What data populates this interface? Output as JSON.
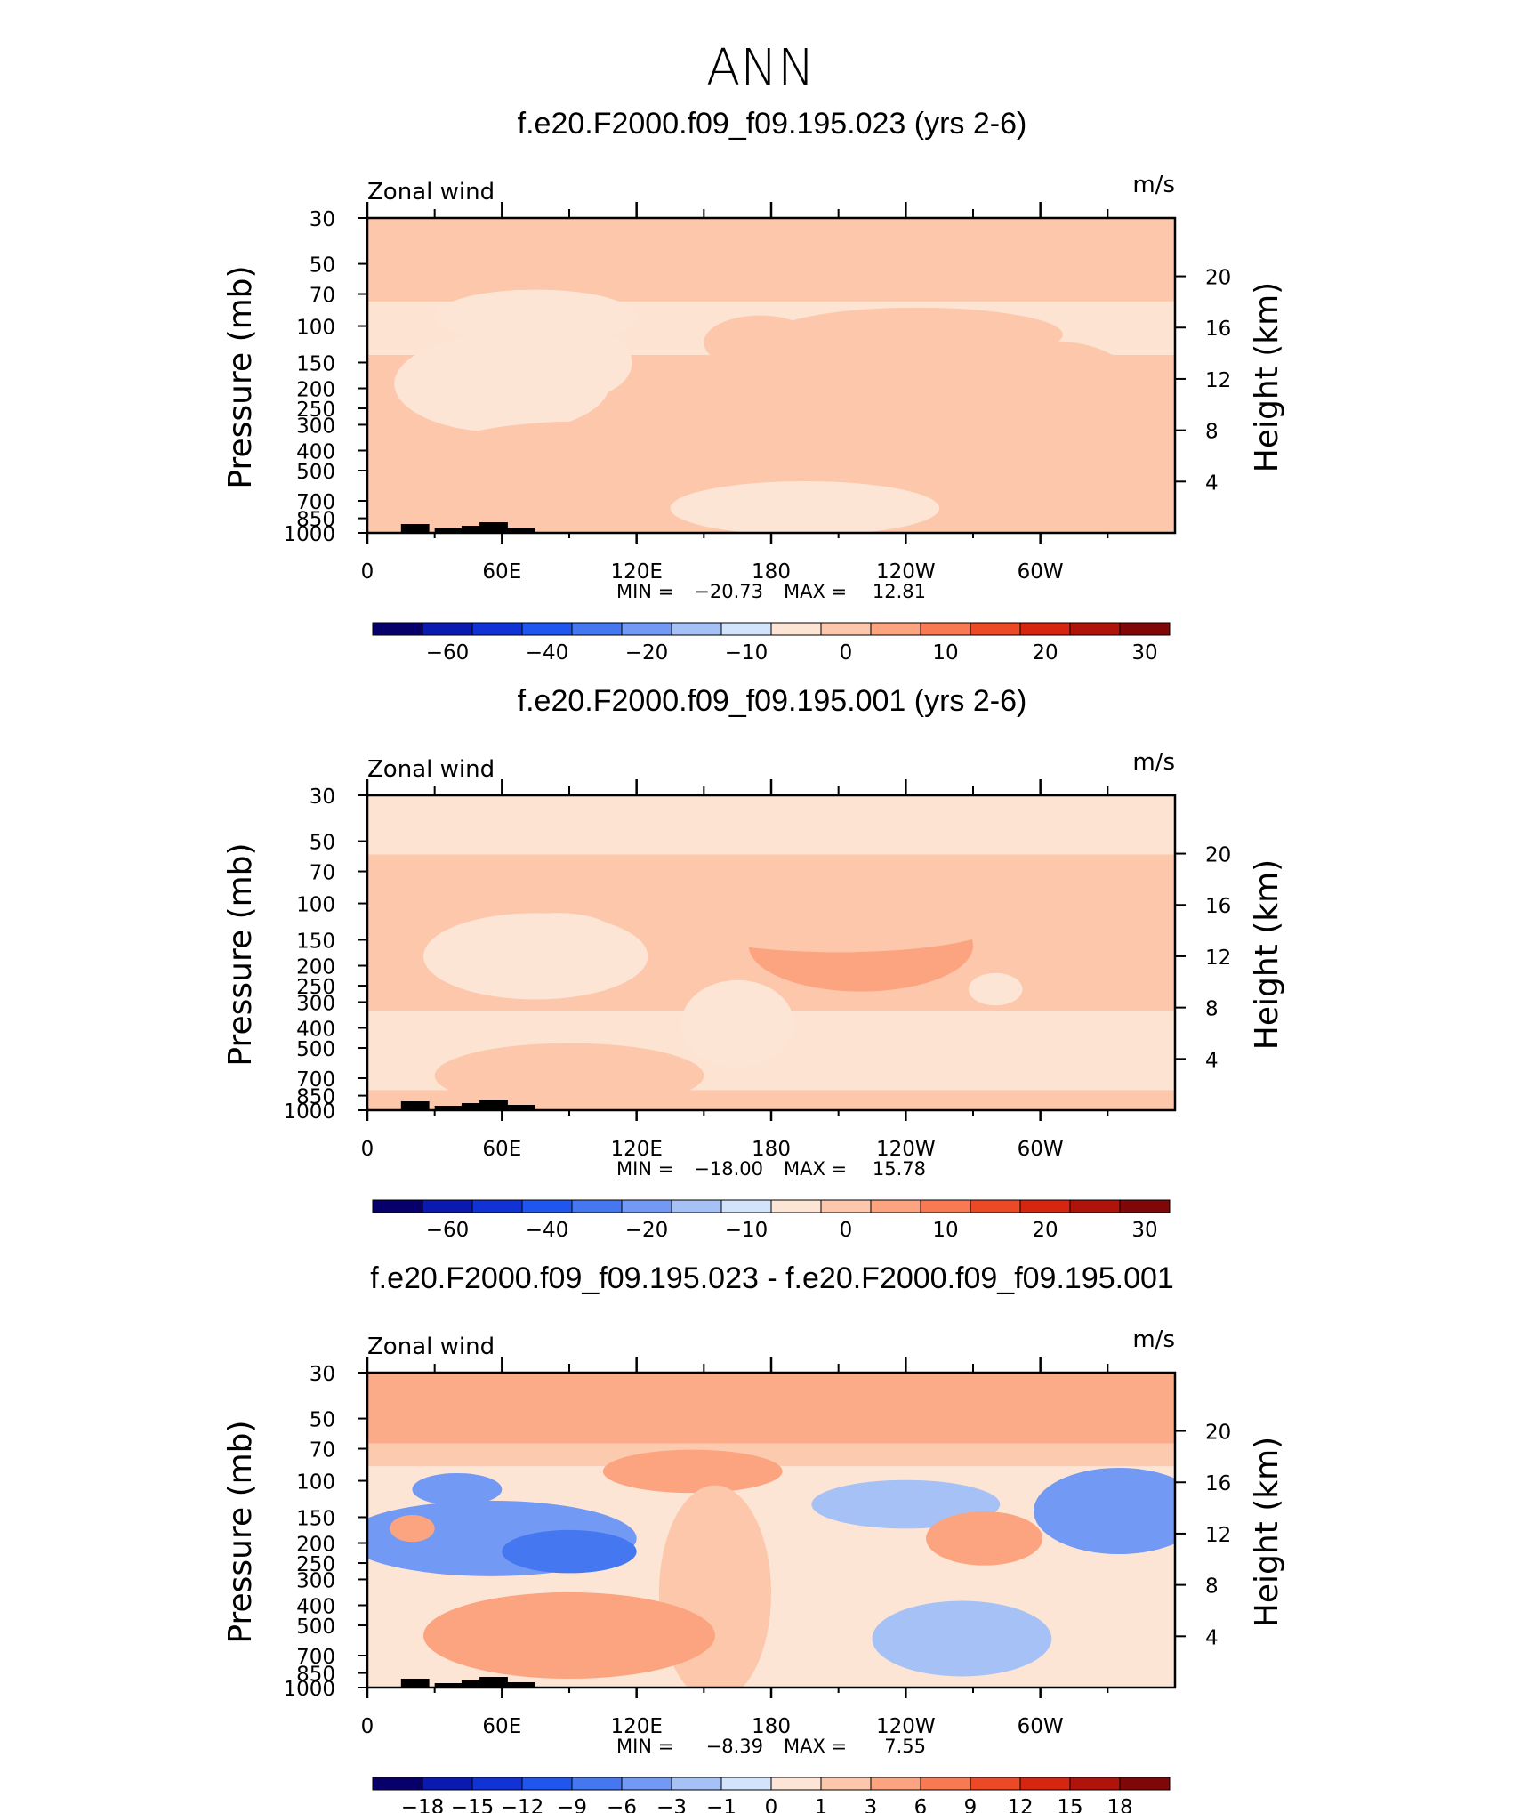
{
  "figure_title": "ANN",
  "chart_data": [
    {
      "type": "heatmap",
      "title": "f.e20.F2000.f09_f09.195.023 (yrs 2-6)",
      "subtitle_left": "Zonal wind",
      "subtitle_right": "m/s",
      "ylabel": "Pressure (mb)",
      "ylabel_right": "Height (km)",
      "x_ticks": [
        "0",
        "60E",
        "120E",
        "180",
        "120W",
        "60W"
      ],
      "x_range": [
        0,
        360
      ],
      "y_ticks": [
        "30",
        "50",
        "70",
        "100",
        "150",
        "200",
        "250",
        "300",
        "400",
        "500",
        "700",
        "850",
        "1000"
      ],
      "y_range": [
        30,
        1000
      ],
      "height_ticks": [
        "20",
        "16",
        "12",
        "8",
        "4"
      ],
      "min_label": "MIN =",
      "min_value": "−20.73",
      "max_label": "MAX =",
      "max_value": "12.81",
      "min": -20.73,
      "max": 12.81,
      "colorbar_labels": [
        "−60",
        "−40",
        "−20",
        "−10",
        "0",
        "10",
        "20",
        "30"
      ],
      "colorbar_colors": [
        "#08006a",
        "#0a1ab0",
        "#1133d6",
        "#1f57ee",
        "#4477f0",
        "#7299f4",
        "#a6c1f6",
        "#d2e4fc",
        "#fde5d5",
        "#fcc7ab",
        "#fba47f",
        "#f77a52",
        "#ec4a26",
        "#d6260f",
        "#b01309",
        "#7f0707"
      ],
      "features": [
        {
          "type": "band",
          "p_top": 76,
          "p_bot": 138,
          "value": -4
        },
        {
          "type": "band",
          "p_top": 138,
          "p_bot": 600,
          "value": 2
        },
        {
          "type": "band",
          "p_top": 520,
          "p_bot": 1000,
          "value": 0
        },
        {
          "type": "blob",
          "lon": 60,
          "p": 190,
          "w": 48,
          "h": 0.9,
          "value": -8
        },
        {
          "type": "blob",
          "lon": 90,
          "p": 150,
          "w": 28,
          "h": 0.7,
          "value": -6
        },
        {
          "type": "blob",
          "lon": 75,
          "p": 90,
          "w": 45,
          "h": 0.5,
          "value": -4
        },
        {
          "type": "blob",
          "lon": 210,
          "p": 160,
          "w": 55,
          "h": 0.85,
          "value": 7
        },
        {
          "type": "blob",
          "lon": 305,
          "p": 180,
          "w": 35,
          "h": 0.7,
          "value": 5
        },
        {
          "type": "blob",
          "lon": 245,
          "p": 110,
          "w": 65,
          "h": 0.5,
          "value": 5
        },
        {
          "type": "blob",
          "lon": 175,
          "p": 120,
          "w": 25,
          "h": 0.5,
          "value": 4
        },
        {
          "type": "blob",
          "lon": 95,
          "p": 560,
          "w": 85,
          "h": 1.1,
          "value": 5
        },
        {
          "type": "blob",
          "lon": 195,
          "p": 760,
          "w": 60,
          "h": 0.5,
          "value": -5
        },
        {
          "type": "blob",
          "lon": 325,
          "p": 520,
          "w": 35,
          "h": 1.0,
          "value": 2
        }
      ]
    },
    {
      "type": "heatmap",
      "title": "f.e20.F2000.f09_f09.195.001 (yrs 2-6)",
      "subtitle_left": "Zonal wind",
      "subtitle_right": "m/s",
      "ylabel": "Pressure (mb)",
      "ylabel_right": "Height (km)",
      "x_ticks": [
        "0",
        "60E",
        "120E",
        "180",
        "120W",
        "60W"
      ],
      "x_range": [
        0,
        360
      ],
      "y_ticks": [
        "30",
        "50",
        "70",
        "100",
        "150",
        "200",
        "250",
        "300",
        "400",
        "500",
        "700",
        "850",
        "1000"
      ],
      "y_range": [
        30,
        1000
      ],
      "height_ticks": [
        "20",
        "16",
        "12",
        "8",
        "4"
      ],
      "min_label": "MIN =",
      "min_value": "−18.00",
      "max_label": "MAX =",
      "max_value": "15.78",
      "min": -18.0,
      "max": 15.78,
      "colorbar_labels": [
        "−60",
        "−40",
        "−20",
        "−10",
        "0",
        "10",
        "20",
        "30"
      ],
      "colorbar_colors": [
        "#08006a",
        "#0a1ab0",
        "#1133d6",
        "#1f57ee",
        "#4477f0",
        "#7299f4",
        "#a6c1f6",
        "#d2e4fc",
        "#fde5d5",
        "#fcc7ab",
        "#fba47f",
        "#f77a52",
        "#ec4a26",
        "#d6260f",
        "#b01309",
        "#7f0707"
      ],
      "features": [
        {
          "type": "band",
          "p_top": 30,
          "p_bot": 58,
          "value": -4
        },
        {
          "type": "band",
          "p_top": 58,
          "p_bot": 110,
          "value": 2
        },
        {
          "type": "band",
          "p_top": 330,
          "p_bot": 800,
          "value": -4
        },
        {
          "type": "blob",
          "lon": 75,
          "p": 180,
          "w": 50,
          "h": 0.8,
          "value": -8
        },
        {
          "type": "blob",
          "lon": 85,
          "p": 150,
          "w": 28,
          "h": 0.5,
          "value": -5
        },
        {
          "type": "blob",
          "lon": 165,
          "p": 380,
          "w": 25,
          "h": 0.8,
          "value": -4
        },
        {
          "type": "blob",
          "lon": 220,
          "p": 160,
          "w": 50,
          "h": 0.85,
          "value": 10
        },
        {
          "type": "blob",
          "lon": 312,
          "p": 165,
          "w": 30,
          "h": 0.7,
          "value": 8
        },
        {
          "type": "blob",
          "lon": 210,
          "p": 120,
          "w": 75,
          "h": 0.6,
          "value": 5
        },
        {
          "type": "blob",
          "lon": 90,
          "p": 680,
          "w": 60,
          "h": 0.6,
          "value": 4
        },
        {
          "type": "blob",
          "lon": 280,
          "p": 260,
          "w": 12,
          "h": 0.3,
          "value": -5
        }
      ]
    },
    {
      "type": "heatmap",
      "title": "f.e20.F2000.f09_f09.195.023 - f.e20.F2000.f09_f09.195.001",
      "subtitle_left": "Zonal wind",
      "subtitle_right": "m/s",
      "ylabel": "Pressure (mb)",
      "ylabel_right": "Height (km)",
      "x_ticks": [
        "0",
        "60E",
        "120E",
        "180",
        "120W",
        "60W"
      ],
      "x_range": [
        0,
        360
      ],
      "y_ticks": [
        "30",
        "50",
        "70",
        "100",
        "150",
        "200",
        "250",
        "300",
        "400",
        "500",
        "700",
        "850",
        "1000"
      ],
      "y_range": [
        30,
        1000
      ],
      "height_ticks": [
        "20",
        "16",
        "12",
        "8",
        "4"
      ],
      "min_label": "MIN =",
      "min_value": "−8.39",
      "max_label": "MAX =",
      "max_value": "7.55",
      "min": -8.39,
      "max": 7.55,
      "colorbar_labels": [
        "−18",
        "−15",
        "−12",
        "−9",
        "−6",
        "−3",
        "−1",
        "0",
        "1",
        "3",
        "6",
        "9",
        "12",
        "15",
        "18"
      ],
      "colorbar_colors": [
        "#08006a",
        "#0a1ab0",
        "#1133d6",
        "#1f57ee",
        "#4477f0",
        "#7299f4",
        "#a6c1f6",
        "#d2e4fc",
        "#fde5d5",
        "#fcc7ab",
        "#fba47f",
        "#f77a52",
        "#ec4a26",
        "#d6260f",
        "#b01309",
        "#7f0707"
      ],
      "features": [
        {
          "type": "band",
          "p_top": 30,
          "p_bot": 66,
          "value": 4.5
        },
        {
          "type": "band",
          "p_top": 66,
          "p_bot": 85,
          "value": 1.5
        },
        {
          "type": "blob",
          "lon": 145,
          "p": 90,
          "w": 40,
          "h": 0.4,
          "value": 4
        },
        {
          "type": "blob",
          "lon": 155,
          "p": 350,
          "w": 25,
          "h": 2.0,
          "value": 2
        },
        {
          "type": "blob",
          "lon": 55,
          "p": 190,
          "w": 65,
          "h": 0.7,
          "value": -4.5
        },
        {
          "type": "blob",
          "lon": 90,
          "p": 220,
          "w": 30,
          "h": 0.4,
          "value": -6.5
        },
        {
          "type": "blob",
          "lon": 40,
          "p": 110,
          "w": 20,
          "h": 0.3,
          "value": -4.5
        },
        {
          "type": "blob",
          "lon": 20,
          "p": 170,
          "w": 10,
          "h": 0.25,
          "value": 3
        },
        {
          "type": "blob",
          "lon": 240,
          "p": 130,
          "w": 42,
          "h": 0.45,
          "value": -2
        },
        {
          "type": "blob",
          "lon": 265,
          "p": 580,
          "w": 40,
          "h": 0.7,
          "value": -2
        },
        {
          "type": "blob",
          "lon": 275,
          "p": 190,
          "w": 26,
          "h": 0.5,
          "value": 4
        },
        {
          "type": "blob",
          "lon": 335,
          "p": 140,
          "w": 38,
          "h": 0.8,
          "value": -5
        },
        {
          "type": "blob",
          "lon": 90,
          "p": 560,
          "w": 65,
          "h": 0.8,
          "value": 3
        }
      ]
    }
  ]
}
